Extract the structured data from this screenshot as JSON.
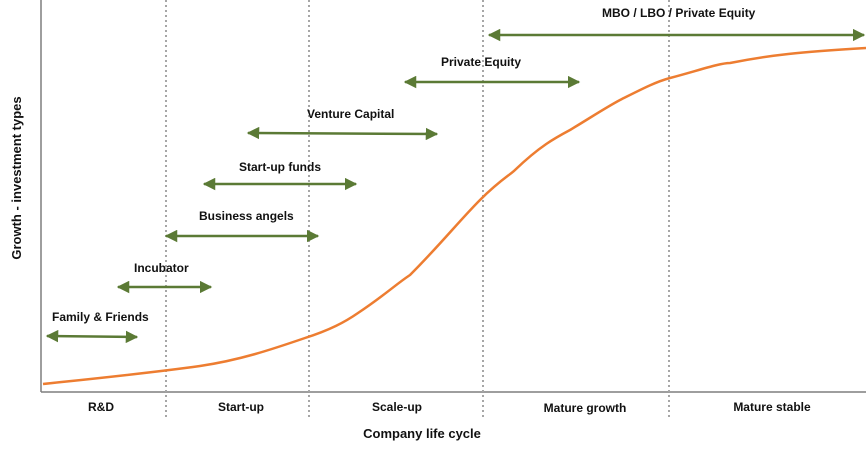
{
  "colors": {
    "curve": "#ED7D31",
    "arrow": "#5B7A35",
    "axis": "#7F7F7F",
    "divider": "#A6A6A6"
  },
  "axes": {
    "xlabel": "Company life cycle",
    "ylabel": "Growth - investment types"
  },
  "stages": [
    "R&D",
    "Start-up",
    "Scale-up",
    "Mature growth",
    "Mature stable"
  ],
  "investments": [
    "Family & Friends",
    "Incubator",
    "Business angels",
    "Start-up funds",
    "Venture Capital",
    "Private Equity",
    "MBO / LBO / Private Equity"
  ]
}
